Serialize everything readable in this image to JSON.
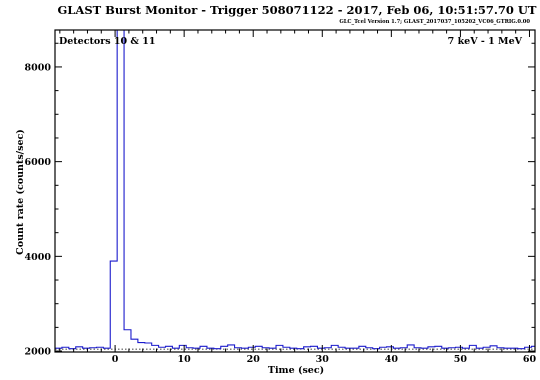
{
  "title": "GLAST Burst Monitor  -  Trigger 508071122  -  2017, Feb 06, 10:51:57.70 UT",
  "version_note": "GLC_Tcel Version 1.7; GLAST_2017037_105202_VC06_GTRIG.0.00",
  "detectors_label": "Detectors 10 & 11",
  "energy_label": "7 keV - 1 MeV",
  "colors": {
    "series": "#1a1acc",
    "background_line": "#000000",
    "axes": "#000000"
  },
  "chart_data": {
    "type": "line",
    "step": true,
    "xlabel": "Time (sec)",
    "ylabel": "Count rate (counts/sec)",
    "xlim": [
      -8.7,
      60.8
    ],
    "ylim": [
      1980,
      8780
    ],
    "xticks": [
      0,
      10,
      20,
      30,
      40,
      50,
      60
    ],
    "yticks": [
      2000,
      4000,
      6000,
      8000
    ],
    "grid": false,
    "background_level": 2040,
    "series": [
      {
        "edges": [
          -8.7,
          -7.7,
          -6.7,
          -5.7,
          -4.7,
          -3.7,
          -2.7,
          -1.7,
          -0.7,
          0.3,
          1.3,
          2.3,
          3.3,
          4.3,
          5.3,
          6.3,
          7.3,
          8.3,
          9.3,
          10.3,
          11.3,
          12.3,
          13.3,
          14.3,
          15.3,
          16.3,
          17.3,
          18.3,
          19.3,
          20.3,
          21.3,
          22.3,
          23.3,
          24.3,
          25.3,
          26.3,
          27.3,
          28.3,
          29.3,
          30.3,
          31.3,
          32.3,
          33.3,
          34.3,
          35.3,
          36.3,
          37.3,
          38.3,
          39.3,
          40.3,
          41.3,
          42.3,
          43.3,
          44.3,
          45.3,
          46.3,
          47.3,
          48.3,
          49.3,
          50.3,
          51.3,
          52.3,
          53.3,
          54.3,
          55.3,
          56.3,
          57.3,
          58.3,
          59.3,
          60.3,
          60.8
        ],
        "values": [
          2060,
          2080,
          2050,
          2090,
          2060,
          2070,
          2080,
          2060,
          3900,
          8780,
          2450,
          2250,
          2180,
          2170,
          2120,
          2080,
          2100,
          2060,
          2120,
          2070,
          2060,
          2100,
          2060,
          2050,
          2100,
          2130,
          2070,
          2060,
          2080,
          2100,
          2070,
          2060,
          2120,
          2080,
          2060,
          2050,
          2090,
          2100,
          2060,
          2070,
          2120,
          2080,
          2060,
          2060,
          2100,
          2070,
          2050,
          2080,
          2090,
          2060,
          2070,
          2130,
          2070,
          2060,
          2090,
          2100,
          2060,
          2070,
          2080,
          2060,
          2120,
          2060,
          2080,
          2110,
          2070,
          2060,
          2060,
          2050,
          2080,
          2100
        ]
      }
    ]
  }
}
